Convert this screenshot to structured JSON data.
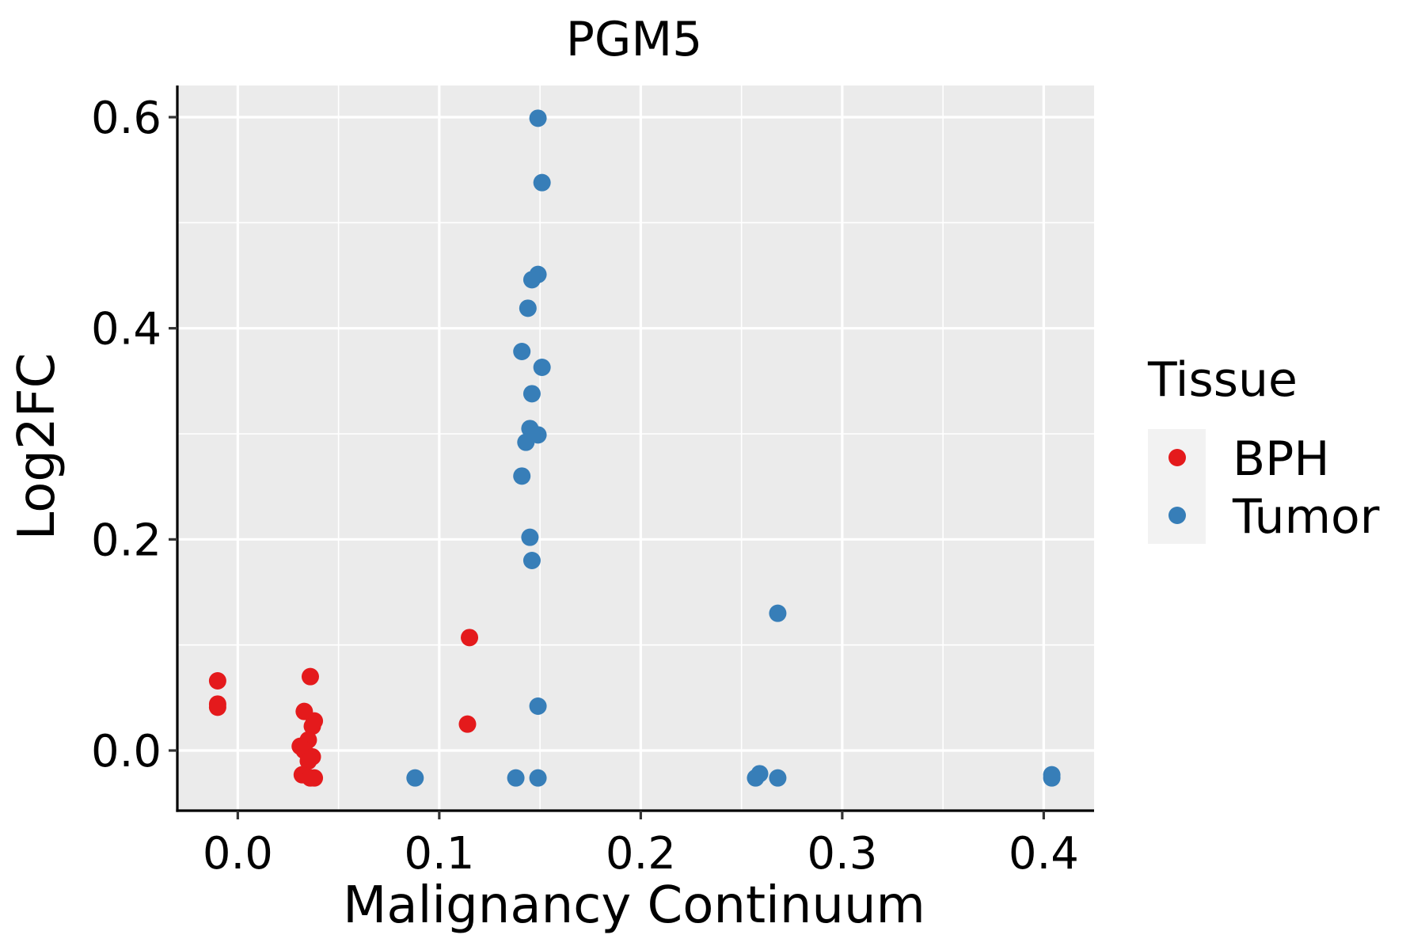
{
  "chart_data": {
    "type": "scatter",
    "title": "PGM5",
    "xlabel": "Malignancy Continuum",
    "ylabel": "Log2FC",
    "xlim": [
      -0.03,
      0.425
    ],
    "ylim": [
      -0.057,
      0.63
    ],
    "x_ticks": [
      0.0,
      0.1,
      0.2,
      0.3,
      0.4
    ],
    "x_tick_labels": [
      "0.0",
      "0.1",
      "0.2",
      "0.3",
      "0.4"
    ],
    "y_ticks": [
      0.0,
      0.2,
      0.4,
      0.6
    ],
    "y_tick_labels": [
      "0.0",
      "0.2",
      "0.4",
      "0.6"
    ],
    "grid": true,
    "legend": {
      "title": "Tissue",
      "position": "right",
      "entries": [
        {
          "label": "BPH",
          "color": "#e41a1c"
        },
        {
          "label": "Tumor",
          "color": "#377eb8"
        }
      ]
    },
    "series": [
      {
        "name": "BPH",
        "color": "#e41a1c",
        "points": [
          {
            "x": -0.01,
            "y": 0.066
          },
          {
            "x": -0.01,
            "y": 0.044
          },
          {
            "x": -0.01,
            "y": 0.041
          },
          {
            "x": 0.036,
            "y": 0.07
          },
          {
            "x": 0.033,
            "y": 0.037
          },
          {
            "x": 0.038,
            "y": 0.028
          },
          {
            "x": 0.037,
            "y": 0.023
          },
          {
            "x": 0.035,
            "y": 0.01
          },
          {
            "x": 0.031,
            "y": 0.004
          },
          {
            "x": 0.033,
            "y": 0.0
          },
          {
            "x": 0.037,
            "y": -0.006
          },
          {
            "x": 0.035,
            "y": -0.01
          },
          {
            "x": 0.032,
            "y": -0.023
          },
          {
            "x": 0.036,
            "y": -0.026
          },
          {
            "x": 0.038,
            "y": -0.026
          },
          {
            "x": 0.115,
            "y": 0.107
          },
          {
            "x": 0.114,
            "y": 0.025
          }
        ]
      },
      {
        "name": "Tumor",
        "color": "#377eb8",
        "points": [
          {
            "x": 0.149,
            "y": 0.599
          },
          {
            "x": 0.151,
            "y": 0.538
          },
          {
            "x": 0.149,
            "y": 0.451
          },
          {
            "x": 0.146,
            "y": 0.446
          },
          {
            "x": 0.144,
            "y": 0.419
          },
          {
            "x": 0.141,
            "y": 0.378
          },
          {
            "x": 0.151,
            "y": 0.363
          },
          {
            "x": 0.146,
            "y": 0.338
          },
          {
            "x": 0.145,
            "y": 0.305
          },
          {
            "x": 0.149,
            "y": 0.299
          },
          {
            "x": 0.143,
            "y": 0.292
          },
          {
            "x": 0.141,
            "y": 0.26
          },
          {
            "x": 0.145,
            "y": 0.202
          },
          {
            "x": 0.146,
            "y": 0.18
          },
          {
            "x": 0.149,
            "y": 0.042
          },
          {
            "x": 0.088,
            "y": -0.026
          },
          {
            "x": 0.138,
            "y": -0.026
          },
          {
            "x": 0.149,
            "y": -0.026
          },
          {
            "x": 0.268,
            "y": 0.13
          },
          {
            "x": 0.259,
            "y": -0.022
          },
          {
            "x": 0.257,
            "y": -0.026
          },
          {
            "x": 0.268,
            "y": -0.026
          },
          {
            "x": 0.404,
            "y": -0.023
          },
          {
            "x": 0.404,
            "y": -0.026
          }
        ]
      }
    ]
  }
}
